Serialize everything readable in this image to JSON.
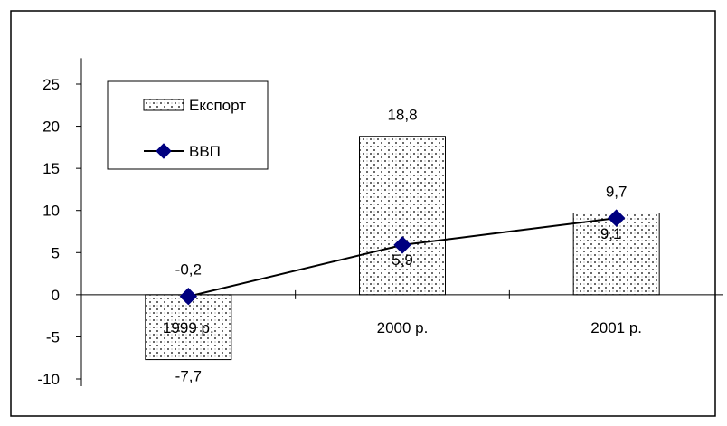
{
  "chart_data": {
    "type": "bar",
    "categories": [
      "1999 р.",
      "2000 р.",
      "2001 р."
    ],
    "series": [
      {
        "name": "Експорт",
        "kind": "bar",
        "values": [
          -7.7,
          18.8,
          9.7
        ],
        "labels": [
          "-7,7",
          "18,8",
          "9,7"
        ]
      },
      {
        "name": "ВВП",
        "kind": "line",
        "values": [
          -0.2,
          5.9,
          9.1
        ],
        "labels": [
          "-0,2",
          "5,9",
          "9,1"
        ],
        "color": "#000080"
      }
    ],
    "yticks": [
      25,
      20,
      15,
      10,
      5,
      0,
      -5,
      -10
    ],
    "ytick_labels": [
      "25",
      "20",
      "15",
      "10",
      "5",
      "0",
      "-5",
      "-10"
    ],
    "ylim": [
      -11,
      27
    ],
    "title": "",
    "xlabel": "",
    "ylabel": "",
    "grid": false,
    "legend_position": "top-left"
  }
}
